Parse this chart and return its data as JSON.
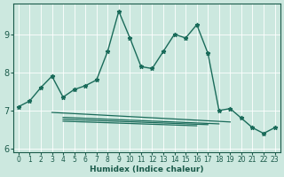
{
  "title": "",
  "xlabel": "Humidex (Indice chaleur)",
  "ylabel": "",
  "bg_color": "#cce8df",
  "line_color": "#1a6b5a",
  "x_main": [
    0,
    1,
    2,
    3,
    4,
    5,
    6,
    7,
    8,
    9,
    10,
    11,
    12,
    13,
    14,
    15,
    16,
    17,
    18,
    19,
    20,
    21,
    22,
    23
  ],
  "y_main": [
    7.1,
    7.25,
    7.6,
    7.9,
    7.35,
    7.55,
    7.65,
    7.8,
    8.55,
    9.6,
    8.9,
    8.15,
    8.1,
    8.55,
    9.0,
    8.9,
    9.25,
    8.5,
    7.0,
    7.05,
    6.8,
    6.55,
    6.4,
    6.55
  ],
  "flat_lines": [
    {
      "x_start": 3,
      "x_end": 19,
      "y_start": 6.95,
      "y_end": 6.7
    },
    {
      "x_start": 4,
      "x_end": 18,
      "y_start": 6.82,
      "y_end": 6.65
    },
    {
      "x_start": 4,
      "x_end": 17,
      "y_start": 6.77,
      "y_end": 6.63
    },
    {
      "x_start": 4,
      "x_end": 16,
      "y_start": 6.72,
      "y_end": 6.6
    }
  ],
  "ylim": [
    5.9,
    9.8
  ],
  "xlim": [
    -0.5,
    23.5
  ],
  "yticks": [
    6,
    7,
    8,
    9
  ],
  "xticks": [
    0,
    1,
    2,
    3,
    4,
    5,
    6,
    7,
    8,
    9,
    10,
    11,
    12,
    13,
    14,
    15,
    16,
    17,
    18,
    19,
    20,
    21,
    22,
    23
  ],
  "grid_color": "#ffffff",
  "tick_color": "#1a5a4a",
  "xlabel_fontsize": 6.5,
  "tick_fontsize_x": 5.5,
  "tick_fontsize_y": 7
}
